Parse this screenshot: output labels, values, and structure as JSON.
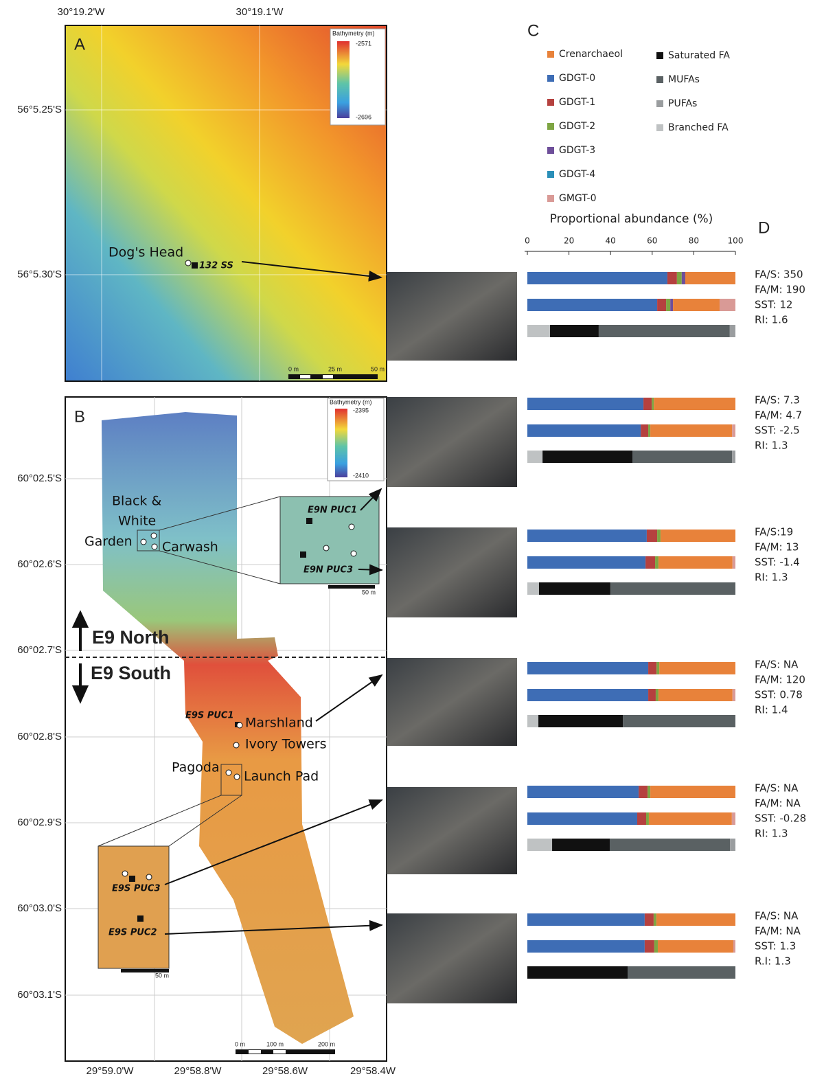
{
  "chart_data": {
    "type": "stacked_bar",
    "panel": "C",
    "stats_panel": "D",
    "x_label": "Proportional abundance (%)",
    "xlim": [
      0,
      100
    ],
    "xticks": [
      0,
      20,
      40,
      60,
      80,
      100
    ],
    "categories": [
      null,
      null,
      null,
      null,
      null,
      null,
      null,
      null,
      null,
      null,
      null,
      null,
      null,
      null,
      null,
      null,
      null,
      null
    ],
    "series": [
      {
        "name": "GDGT-0",
        "color": "#3e6db5",
        "values": [
          67.3,
          62.4,
          null,
          55.8,
          54.5,
          null,
          57.4,
          56.8,
          null,
          58.1,
          58.1,
          null,
          53.5,
          52.8,
          null,
          56.4,
          56.4,
          null
        ]
      },
      {
        "name": "GDGT-1",
        "color": "#b5413f",
        "values": [
          4.6,
          4.3,
          null,
          4,
          3.6,
          null,
          5,
          4.6,
          null,
          4,
          3.6,
          null,
          4.3,
          4.3,
          null,
          4.3,
          4.6,
          null
        ]
      },
      {
        "name": "GDGT-2",
        "color": "#7ea543",
        "values": [
          2.3,
          2,
          null,
          1,
          1,
          null,
          1.6,
          1.6,
          null,
          1.3,
          1.3,
          null,
          1.3,
          1.3,
          null,
          1.3,
          1.7,
          null
        ]
      },
      {
        "name": "GDGT-3",
        "color": "#6e4f9a",
        "values": [
          1.7,
          1.3,
          null,
          null,
          null,
          null,
          null,
          null,
          null,
          null,
          null,
          null,
          null,
          null,
          null,
          null,
          null,
          null
        ]
      },
      {
        "name": "GDGT-4",
        "color": "#2a8fb8",
        "values": [
          null,
          null,
          null,
          null,
          null,
          null,
          null,
          null,
          null,
          null,
          null,
          null,
          null,
          null,
          null,
          null,
          null,
          null
        ]
      },
      {
        "name": "Crenarchaeol",
        "color": "#e8823a",
        "values": [
          24.1,
          22.4,
          null,
          39.2,
          39.3,
          null,
          36,
          35.6,
          null,
          36.6,
          35.6,
          null,
          40.9,
          39.9,
          null,
          38,
          36.3,
          null
        ]
      },
      {
        "name": "GMGT-0",
        "color": "#d99a96",
        "values": [
          null,
          7.6,
          null,
          null,
          1.6,
          null,
          null,
          1.4,
          null,
          null,
          1.4,
          null,
          null,
          1.7,
          null,
          null,
          1,
          null
        ]
      },
      {
        "name": "Branched FA",
        "color": "#bfc2c3",
        "values": [
          null,
          null,
          10.9,
          null,
          null,
          7.3,
          null,
          null,
          5.6,
          null,
          null,
          5.3,
          null,
          null,
          11.9,
          null,
          null,
          null
        ]
      },
      {
        "name": "Saturated FA",
        "color": "#111111",
        "values": [
          null,
          null,
          23.4,
          null,
          null,
          43.2,
          null,
          null,
          34.3,
          null,
          null,
          40.6,
          null,
          null,
          27.7,
          null,
          null,
          48.2
        ]
      },
      {
        "name": "MUFAs",
        "color": "#5a6163",
        "values": [
          null,
          null,
          63,
          null,
          null,
          47.9,
          null,
          null,
          60.1,
          null,
          null,
          54.1,
          null,
          null,
          57.8,
          null,
          null,
          51.8
        ]
      },
      {
        "name": "PUFAs",
        "color": "#9a9d9f",
        "values": [
          null,
          null,
          2.7,
          null,
          null,
          1.6,
          null,
          null,
          null,
          null,
          null,
          null,
          null,
          null,
          2.6,
          null,
          null,
          null
        ]
      }
    ],
    "stats": [
      [
        "FA/S: 350",
        "FA/M: 190",
        "SST: 12",
        "RI: 1.6"
      ],
      [
        "FA/S: 7.3",
        "FA/M: 4.7",
        "SST: -2.5",
        "RI: 1.3"
      ],
      [
        "FA/S:19",
        "FA/M: 13",
        "SST: -1.4",
        "RI: 1.3"
      ],
      [
        "FA/S: NA",
        "FA/M: 120",
        "SST: 0.78",
        "RI: 1.4"
      ],
      [
        "FA/S: NA",
        "FA/M: NA",
        "SST: -0.28",
        "RI: 1.3"
      ],
      [
        "FA/S: NA",
        "FA/M: NA",
        "SST: 1.3",
        "R.I: 1.3"
      ]
    ]
  },
  "map_a": {
    "label": "A",
    "lon_ticks": [
      "30°19.2'W",
      "30°19.1'W"
    ],
    "lat_ticks": [
      "56°5.25'S",
      "56°5.30'S"
    ],
    "legend": {
      "title": "Bathymetry (m)",
      "max": "-2571",
      "min": "-2696"
    },
    "site": "Dog's Head",
    "sample": "132 SS",
    "scale": [
      "0 m",
      "25 m",
      "50 m"
    ]
  },
  "map_b": {
    "label": "B",
    "lat_ticks": [
      "60°02.5'S",
      "60°02.6'S",
      "60°02.7'S",
      "60°02.8'S",
      "60°02.9'S",
      "60°03.0'S",
      "60°03.1'S"
    ],
    "lon_ticks": [
      "29°59.0'W",
      "29°58.8'W",
      "29°58.6W",
      "29°58.4W"
    ],
    "legend": {
      "title": "Bathymetry (m)",
      "max": "-2395",
      "min": "-2410"
    },
    "region_north": "E9 North",
    "region_south": "E9 South",
    "sites": [
      "Black &",
      "White",
      "Garden",
      "Carwash",
      "Marshland",
      "Ivory Towers",
      "Pagoda",
      "Launch Pad"
    ],
    "samples": [
      "E9N PUC1",
      "E9N PUC3",
      "E9S PUC1",
      "E9S PUC3",
      "E9S PUC2"
    ],
    "inset_scale": [
      "50 m",
      "50 m"
    ],
    "scale": [
      "0 m",
      "100 m",
      "200 m"
    ]
  }
}
